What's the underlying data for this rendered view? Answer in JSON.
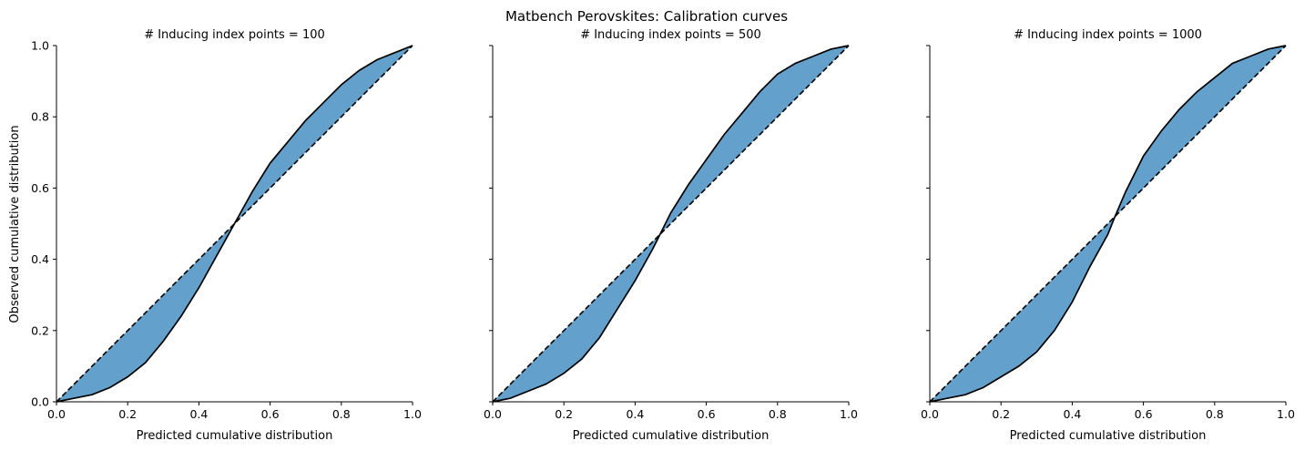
{
  "figure": {
    "suptitle": "Matbench Perovskites: Calibration curves"
  },
  "chart_data": [
    {
      "type": "area",
      "title": "# Inducing index points = 100",
      "xlabel": "Predicted cumulative distribution",
      "ylabel": "Observed cumulative distribution",
      "xlim": [
        0,
        1
      ],
      "ylim": [
        0,
        1
      ],
      "xticks": [
        "0.0",
        "0.2",
        "0.4",
        "0.6",
        "0.8",
        "1.0"
      ],
      "yticks": [
        "0.0",
        "0.2",
        "0.4",
        "0.6",
        "0.8",
        "1.0"
      ],
      "grid": false,
      "fill_color": "#5b9bc9",
      "reference_line": {
        "x": [
          0,
          1
        ],
        "y": [
          0,
          1
        ],
        "style": "dashed"
      },
      "series": [
        {
          "x": [
            0.0,
            0.05,
            0.1,
            0.15,
            0.2,
            0.25,
            0.3,
            0.35,
            0.4,
            0.45,
            0.5,
            0.55,
            0.6,
            0.65,
            0.7,
            0.75,
            0.8,
            0.85,
            0.9,
            0.95,
            1.0
          ],
          "y": [
            0.0,
            0.01,
            0.02,
            0.04,
            0.07,
            0.11,
            0.17,
            0.24,
            0.32,
            0.41,
            0.5,
            0.59,
            0.67,
            0.73,
            0.79,
            0.84,
            0.89,
            0.93,
            0.96,
            0.98,
            1.0
          ]
        }
      ]
    },
    {
      "type": "area",
      "title": "# Inducing index points = 500",
      "xlabel": "Predicted cumulative distribution",
      "ylabel": "",
      "xlim": [
        0,
        1
      ],
      "ylim": [
        0,
        1
      ],
      "xticks": [
        "0.0",
        "0.2",
        "0.4",
        "0.6",
        "0.8",
        "1.0"
      ],
      "yticks": [],
      "grid": false,
      "fill_color": "#5b9bc9",
      "reference_line": {
        "x": [
          0,
          1
        ],
        "y": [
          0,
          1
        ],
        "style": "dashed"
      },
      "series": [
        {
          "x": [
            0.0,
            0.05,
            0.1,
            0.15,
            0.2,
            0.25,
            0.3,
            0.35,
            0.4,
            0.45,
            0.47,
            0.5,
            0.55,
            0.6,
            0.65,
            0.7,
            0.75,
            0.8,
            0.85,
            0.9,
            0.95,
            1.0
          ],
          "y": [
            0.0,
            0.01,
            0.03,
            0.05,
            0.08,
            0.12,
            0.18,
            0.26,
            0.34,
            0.43,
            0.47,
            0.53,
            0.61,
            0.68,
            0.75,
            0.81,
            0.87,
            0.92,
            0.95,
            0.97,
            0.99,
            1.0
          ]
        }
      ]
    },
    {
      "type": "area",
      "title": "# Inducing index points = 1000",
      "xlabel": "Predicted cumulative distribution",
      "ylabel": "",
      "xlim": [
        0,
        1
      ],
      "ylim": [
        0,
        1
      ],
      "xticks": [
        "0.0",
        "0.2",
        "0.4",
        "0.6",
        "0.8",
        "1.0"
      ],
      "yticks": [],
      "grid": false,
      "fill_color": "#5b9bc9",
      "reference_line": {
        "x": [
          0,
          1
        ],
        "y": [
          0,
          1
        ],
        "style": "dashed"
      },
      "series": [
        {
          "x": [
            0.0,
            0.05,
            0.1,
            0.15,
            0.2,
            0.25,
            0.3,
            0.35,
            0.4,
            0.45,
            0.5,
            0.52,
            0.55,
            0.6,
            0.65,
            0.7,
            0.75,
            0.8,
            0.85,
            0.9,
            0.95,
            1.0
          ],
          "y": [
            0.0,
            0.01,
            0.02,
            0.04,
            0.07,
            0.1,
            0.14,
            0.2,
            0.28,
            0.38,
            0.47,
            0.52,
            0.59,
            0.69,
            0.76,
            0.82,
            0.87,
            0.91,
            0.95,
            0.97,
            0.99,
            1.0
          ]
        }
      ]
    }
  ]
}
